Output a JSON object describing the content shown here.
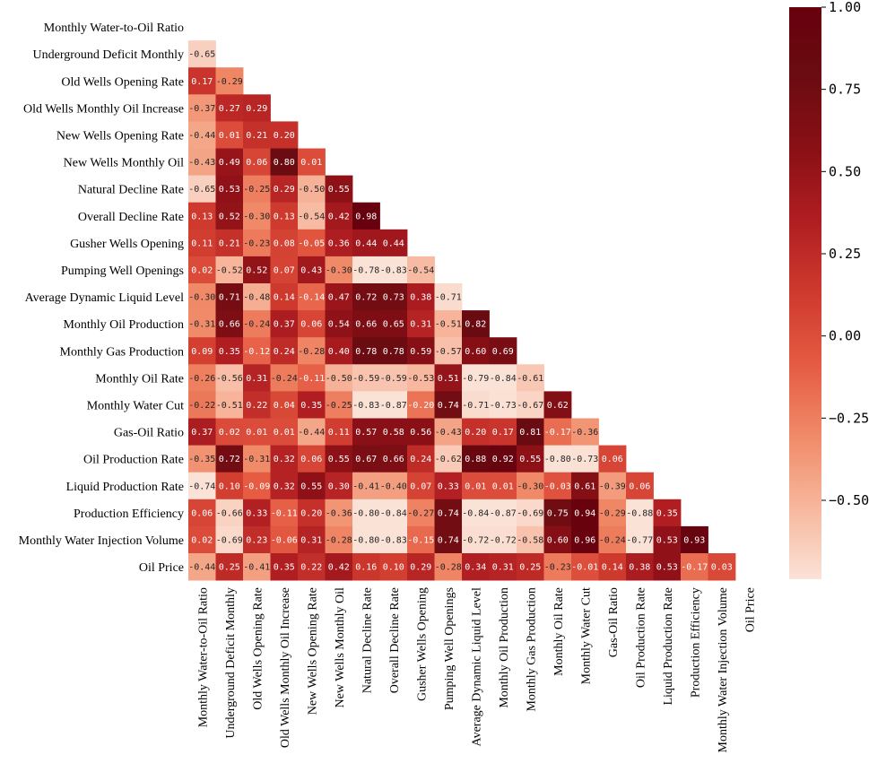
{
  "chart_data": {
    "type": "heatmap",
    "title": "",
    "variables": [
      "Monthly Water-to-Oil Ratio",
      "Underground Deficit Monthly",
      "Old Wells Opening Rate",
      "Old Wells Monthly Oil Increase",
      "New Wells Opening Rate",
      "New Wells Monthly Oil",
      "Natural Decline Rate",
      "Overall Decline Rate",
      "Gusher Wells Opening",
      "Pumping Well Openings",
      "Average Dynamic Liquid Level",
      "Monthly Oil Production",
      "Monthly Gas Production",
      "Monthly Oil Rate",
      "Monthly Water Cut",
      "Gas-Oil Ratio",
      "Oil Production Rate",
      "Liquid Production Rate",
      "Production Efficiency",
      "Monthly Water Injection Volume",
      "Oil Price"
    ],
    "rows": [
      [],
      [
        "-0.65"
      ],
      [
        "0.17",
        "-0.29"
      ],
      [
        "-0.37",
        "0.27",
        "0.29"
      ],
      [
        "-0.44",
        "0.01",
        "0.21",
        "0.20"
      ],
      [
        "-0.43",
        "0.49",
        "0.06",
        "0.80",
        "0.01"
      ],
      [
        "-0.65",
        "0.53",
        "-0.25",
        "0.29",
        "-0.50",
        "0.55"
      ],
      [
        "0.13",
        "0.52",
        "-0.30",
        "0.13",
        "-0.54",
        "0.42",
        "0.98"
      ],
      [
        "0.11",
        "0.21",
        "-0.23",
        "0.08",
        "-0.05",
        "0.36",
        "0.44",
        "0.44"
      ],
      [
        "0.02",
        "-0.52",
        "0.52",
        "0.07",
        "0.43",
        "-0.30",
        "-0.78",
        "-0.83",
        "-0.54"
      ],
      [
        "-0.30",
        "0.71",
        "-0.48",
        "0.14",
        "-0.14",
        "0.47",
        "0.72",
        "0.73",
        "0.38",
        "-0.71"
      ],
      [
        "-0.31",
        "0.66",
        "-0.24",
        "0.37",
        "0.06",
        "0.54",
        "0.66",
        "0.65",
        "0.31",
        "-0.51",
        "0.82"
      ],
      [
        "0.09",
        "0.35",
        "-0.12",
        "0.24",
        "-0.28",
        "0.40",
        "0.78",
        "0.78",
        "0.59",
        "-0.57",
        "0.60",
        "0.69"
      ],
      [
        "-0.26",
        "-0.56",
        "0.31",
        "-0.24",
        "-0.11",
        "-0.50",
        "-0.59",
        "-0.59",
        "-0.53",
        "0.51",
        "-0.79",
        "-0.84",
        "-0.61"
      ],
      [
        "-0.22",
        "-0.51",
        "0.22",
        "0.04",
        "0.35",
        "-0.25",
        "-0.83",
        "-0.87",
        "-0.20",
        "0.74",
        "-0.71",
        "-0.73",
        "-0.67",
        "0.62"
      ],
      [
        "0.37",
        "0.02",
        "0.01",
        "0.01",
        "-0.44",
        "0.11",
        "0.57",
        "0.58",
        "0.56",
        "-0.43",
        "0.20",
        "0.17",
        "0.81",
        "-0.17",
        "-0.36"
      ],
      [
        "-0.35",
        "0.72",
        "-0.31",
        "0.32",
        "0.06",
        "0.55",
        "0.67",
        "0.66",
        "0.24",
        "-0.62",
        "0.88",
        "0.92",
        "0.55",
        "-0.80",
        "-0.73",
        "0.06"
      ],
      [
        "-0.74",
        "0.10",
        "-0.09",
        "0.32",
        "0.55",
        "0.30",
        "-0.41",
        "-0.40",
        "0.07",
        "0.33",
        "0.01",
        "0.01",
        "-0.30",
        "-0.03",
        "0.61",
        "-0.39",
        "0.06"
      ],
      [
        "0.06",
        "-0.66",
        "0.33",
        "-0.11",
        "0.20",
        "-0.36",
        "-0.80",
        "-0.84",
        "-0.27",
        "0.74",
        "-0.84",
        "-0.87",
        "-0.69",
        "0.75",
        "0.94",
        "-0.29",
        "-0.88",
        "0.35"
      ],
      [
        "0.02",
        "-0.69",
        "0.23",
        "-0.06",
        "0.31",
        "-0.28",
        "-0.80",
        "-0.83",
        "-0.15",
        "0.74",
        "-0.72",
        "-0.72",
        "-0.58",
        "0.60",
        "0.96",
        "-0.24",
        "-0.77",
        "0.53",
        "0.93"
      ],
      [
        "-0.44",
        "0.25",
        "-0.41",
        "0.35",
        "0.22",
        "0.42",
        "0.16",
        "0.10",
        "0.29",
        "-0.28",
        "0.34",
        "0.31",
        "0.25",
        "-0.23",
        "-0.01",
        "0.14",
        "0.38",
        "0.53",
        "-0.17",
        "0.03"
      ]
    ],
    "colorbar": {
      "vmin": -0.74,
      "vmax": 1.0,
      "ticks": [
        "1.00",
        "0.75",
        "0.50",
        "0.25",
        "0.00",
        "−0.25",
        "−0.50"
      ],
      "colors": [
        "#fbe2d7",
        "#f7b79d",
        "#f08a68",
        "#e55b43",
        "#cf3a2e",
        "#b01e22",
        "#8a1016",
        "#6b0c12",
        "#67000d"
      ]
    },
    "mask": "upper-triangle-including-diagonal"
  }
}
